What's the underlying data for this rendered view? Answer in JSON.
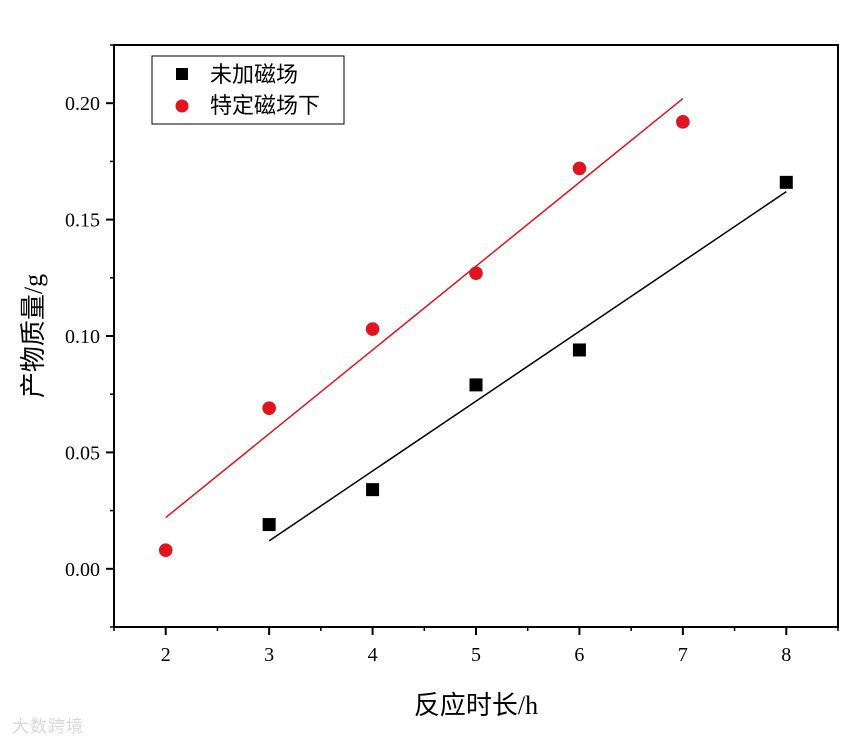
{
  "chart_data": {
    "type": "scatter",
    "xlabel": "反应时长/h",
    "ylabel": "产物质量/g",
    "xlim": [
      1.5,
      8.5
    ],
    "ylim": [
      -0.025,
      0.225
    ],
    "x_ticks": [
      "2",
      "3",
      "4",
      "5",
      "6",
      "7",
      "8"
    ],
    "y_ticks": [
      "0.00",
      "0.05",
      "0.10",
      "0.15",
      "0.20"
    ],
    "legend_position": "top-left",
    "series": [
      {
        "name": "未加磁场",
        "marker": "square",
        "color": "#000000",
        "points": [
          [
            3,
            0.019
          ],
          [
            4,
            0.034
          ],
          [
            5,
            0.079
          ],
          [
            6,
            0.094
          ],
          [
            8,
            0.166
          ]
        ],
        "fit": {
          "x": [
            3,
            8
          ],
          "y": [
            0.012,
            0.162
          ]
        }
      },
      {
        "name": "特定磁场下",
        "marker": "circle",
        "color": "#e0141e",
        "points": [
          [
            2,
            0.008
          ],
          [
            3,
            0.069
          ],
          [
            4,
            0.103
          ],
          [
            5,
            0.127
          ],
          [
            6,
            0.172
          ],
          [
            7,
            0.192
          ]
        ],
        "fit": {
          "x": [
            2,
            7
          ],
          "y": [
            0.022,
            0.202
          ]
        }
      }
    ]
  },
  "watermark": "大数跨境"
}
